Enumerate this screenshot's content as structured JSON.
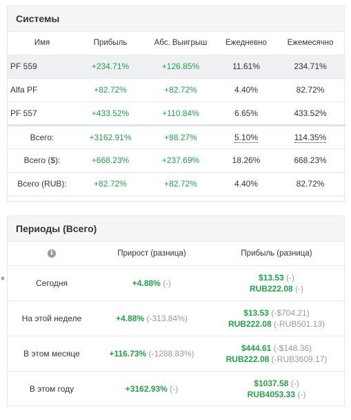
{
  "systems": {
    "title": "Системы",
    "columns": [
      "Имя",
      "Прибыль",
      "Абс. Выигрыш",
      "Ежедневно",
      "Ежемесячно"
    ],
    "rows": [
      {
        "name": "PF 559",
        "profit": "+234.71%",
        "abs_gain": "+126.85%",
        "daily": "11.61%",
        "monthly": "234.71%"
      },
      {
        "name": "Alfa PF",
        "profit": "+82.72%",
        "abs_gain": "+82.72%",
        "daily": "4.40%",
        "monthly": "82.72%"
      },
      {
        "name": "PF 557",
        "profit": "+433.52%",
        "abs_gain": "+110.84%",
        "daily": "6.65%",
        "monthly": "433.52%"
      }
    ],
    "totals": [
      {
        "label": "Всего:",
        "profit": "+3162.91%",
        "abs_gain": "+88.27%",
        "daily": "5.10%",
        "monthly": "114.35%"
      },
      {
        "label": "Всего ($):",
        "profit": "+668.23%",
        "abs_gain": "+237.69%",
        "daily": "18.26%",
        "monthly": "668.23%"
      },
      {
        "label": "Всего (RUB):",
        "profit": "+82.72%",
        "abs_gain": "+82.72%",
        "daily": "4.40%",
        "monthly": "82.72%"
      }
    ]
  },
  "periods": {
    "title": "Периоды (Всего)",
    "info_icon": "info-icon",
    "columns": [
      "Прирост (разница)",
      "Прибыль (разница)"
    ],
    "rows": [
      {
        "label": "Сегодня",
        "growth": "+4.88%",
        "growth_diff": "(-)",
        "profit_usd": "$13.53",
        "profit_usd_diff": "(-)",
        "profit_rub": "RUB222.08",
        "profit_rub_diff": "(-)"
      },
      {
        "label": "На этой неделе",
        "growth": "+4.88%",
        "growth_diff": "(-313.84%)",
        "profit_usd": "$13.53",
        "profit_usd_diff": "(-$704.21)",
        "profit_rub": "RUB222.08",
        "profit_rub_diff": "(-RUB501.13)"
      },
      {
        "label": "В этом месяце",
        "growth": "+116.73%",
        "growth_diff": "(-1288.83%)",
        "profit_usd": "$444.61",
        "profit_usd_diff": "(-$148.36)",
        "profit_rub": "RUB222.08",
        "profit_rub_diff": "(-RUB3609.17)"
      },
      {
        "label": "В этом году",
        "growth": "+3162.93%",
        "growth_diff": "(-)",
        "profit_usd": "$1037.58",
        "profit_usd_diff": "(-)",
        "profit_rub": "RUB4053.33",
        "profit_rub_diff": "(-)"
      }
    ]
  },
  "colors": {
    "positive": "#21a348",
    "muted": "#999999",
    "header_bg": "#f5f5f5",
    "highlight_row": "#eef0f3"
  }
}
